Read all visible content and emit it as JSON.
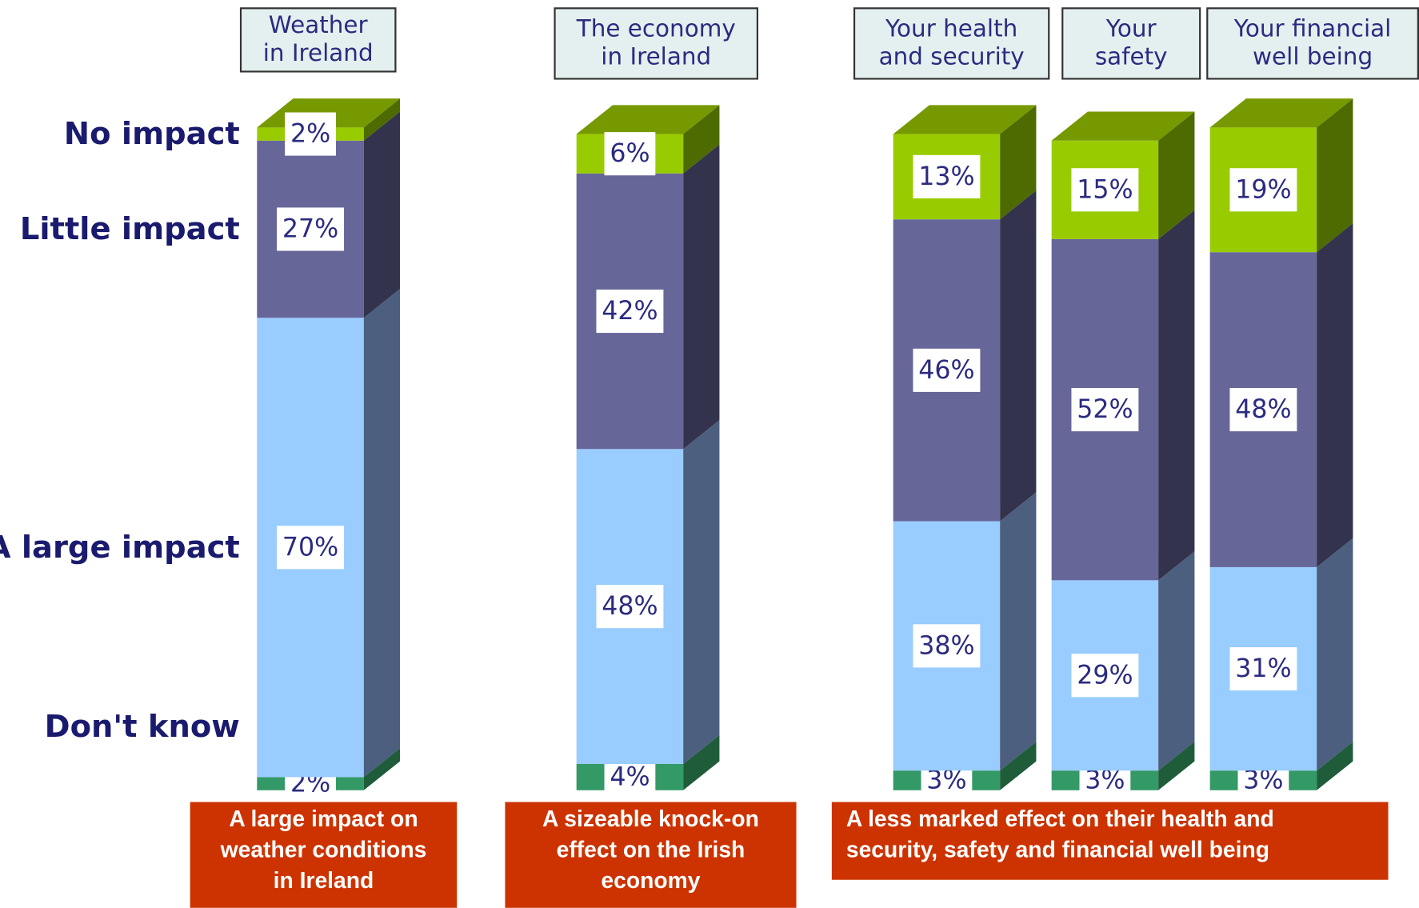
{
  "chart_data": {
    "type": "stacked-bar-3d",
    "categories": [
      "Weather\nin Ireland",
      "The economy\nin Ireland",
      "Your health\nand security",
      "Your\nsafety",
      "Your financial\nwell being"
    ],
    "series": [
      {
        "name": "Don't know",
        "color": "#339966",
        "values": [
          2,
          4,
          3,
          3,
          3
        ],
        "value_labels": [
          "2%",
          "4%",
          "3%",
          "3%",
          "3%"
        ]
      },
      {
        "name": "A large impact",
        "color": "#99ccff",
        "values": [
          70,
          48,
          38,
          29,
          31
        ],
        "value_labels": [
          "70%",
          "48%",
          "38%",
          "29%",
          "31%"
        ]
      },
      {
        "name": "Little impact",
        "color": "#666699",
        "values": [
          27,
          42,
          46,
          52,
          48
        ],
        "value_labels": [
          "27%",
          "42%",
          "46%",
          "52%",
          "48%"
        ]
      },
      {
        "name": "No impact",
        "color": "#99cc00",
        "values": [
          2,
          6,
          13,
          15,
          19
        ],
        "value_labels": [
          "2%",
          "6%",
          "13%",
          "15%",
          "19%"
        ]
      }
    ],
    "annotations": [
      "A large impact on\nweather conditions\nin Ireland",
      "A sizeable knock-on\neffect on the Irish\neconomy",
      "A less marked effect on their health and\nsecurity, safety and financial well being"
    ]
  }
}
